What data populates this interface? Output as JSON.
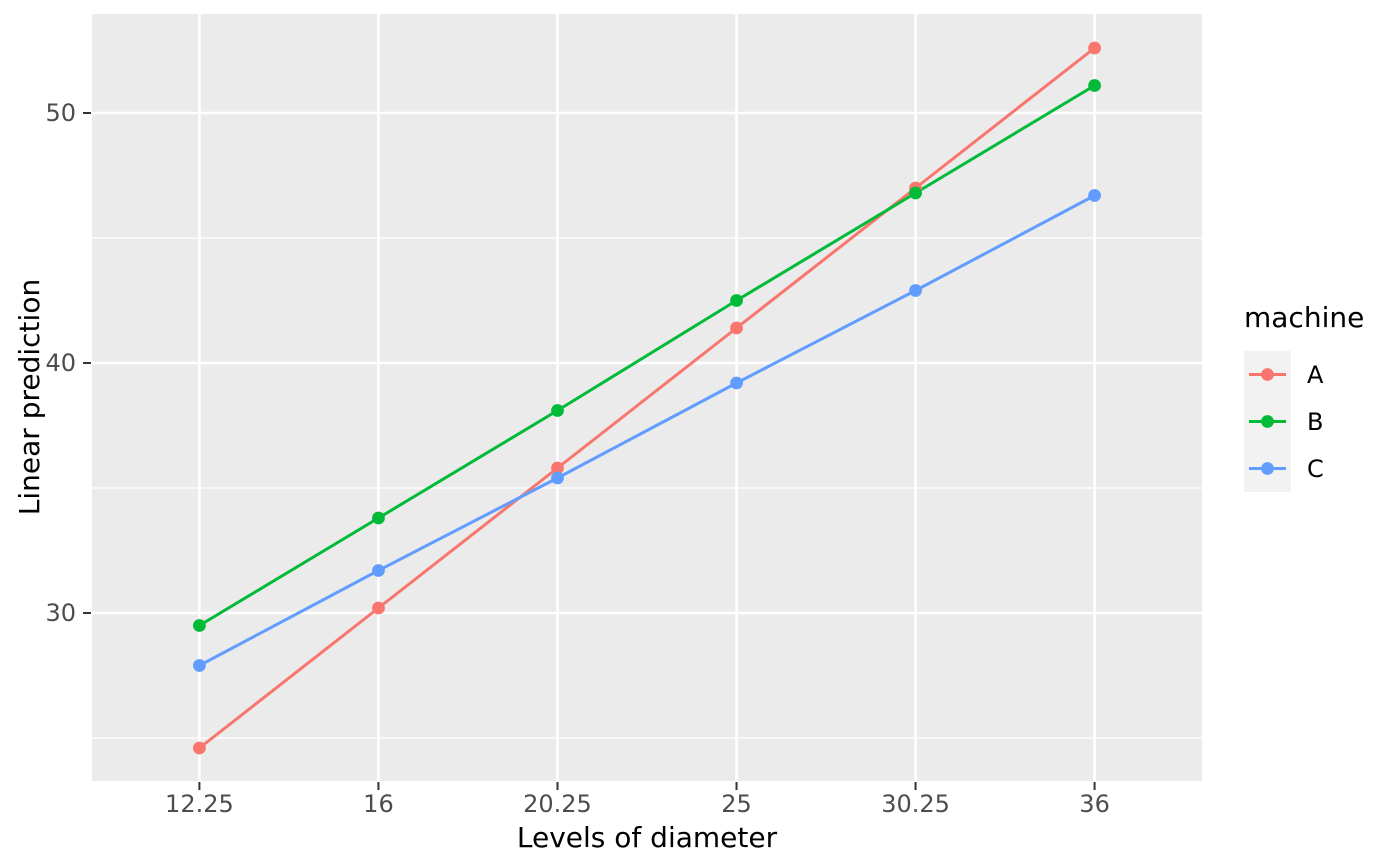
{
  "chart_data": {
    "type": "line",
    "title": "",
    "xlabel": "Levels of diameter",
    "ylabel": "Linear prediction",
    "x_scale": "discrete",
    "categories": [
      "12.25",
      "16",
      "20.25",
      "25",
      "30.25",
      "36"
    ],
    "series": [
      {
        "name": "A",
        "color": "#F8766D",
        "values": [
          24.6,
          30.2,
          35.8,
          41.4,
          47.0,
          52.6
        ]
      },
      {
        "name": "B",
        "color": "#00BA38",
        "values": [
          29.5,
          33.8,
          38.1,
          42.5,
          46.8,
          51.1
        ]
      },
      {
        "name": "C",
        "color": "#619CFF",
        "values": [
          27.9,
          31.7,
          35.4,
          39.2,
          42.9,
          46.7
        ]
      }
    ],
    "y_ticks_major": [
      30,
      40,
      50
    ],
    "y_ticks_minor": [
      25,
      35,
      45
    ],
    "ylim": [
      23.28,
      53.96
    ],
    "grid": "major+minor, white on grey panel",
    "legend": {
      "title": "machine",
      "position": "right"
    },
    "style": {
      "panel_bg": "#EBEBEB",
      "grid_color": "#FFFFFF",
      "tick_mark_color": "#333333",
      "tick_label_color": "#4D4D4D",
      "axis_title_color": "#000000",
      "legend_key_bg": "#F2F2F2"
    }
  }
}
